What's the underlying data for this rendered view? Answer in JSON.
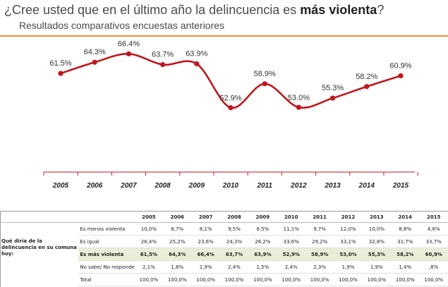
{
  "title": {
    "prefix": "¿Cree usted que en el último año la delincuencia es ",
    "bold": "más violenta",
    "suffix": "?"
  },
  "subtitle": "Resultados comparativos encuestas anteriores",
  "colors": {
    "line": "#c0161c",
    "accent": "#f08a2c",
    "highlight": "#e8eed7"
  },
  "chart_data": {
    "type": "line",
    "categories": [
      "2005",
      "2006",
      "2007",
      "2008",
      "2009",
      "2010",
      "2011",
      "2012",
      "2013",
      "2014",
      "2015"
    ],
    "values": [
      61.5,
      64.3,
      66.4,
      63.7,
      63.9,
      52.9,
      58.9,
      53.0,
      55.3,
      58.2,
      60.9
    ],
    "data_labels": [
      "61.5%",
      "64.3%",
      "66.4%",
      "63.7%",
      "63.9%",
      "52.9%",
      "58.9%",
      "53.0%",
      "55.3%",
      "58.2%",
      "60.9%"
    ],
    "ylim": [
      35,
      70
    ],
    "grid": false
  },
  "table": {
    "question": "Qué diría de la delincuencia en su comuna hoy:",
    "years": [
      "2005",
      "2006",
      "2007",
      "2008",
      "2009",
      "2010",
      "2011",
      "2012",
      "2013",
      "2014",
      "2015"
    ],
    "rows": [
      {
        "label": "Es menos violenta",
        "values": [
          "10,0%",
          "8,7%",
          "8,1%",
          "9,5%",
          "8,5%",
          "11,1%",
          "9,7%",
          "12,0%",
          "10,0%",
          "8,8%",
          "4,6%"
        ]
      },
      {
        "label": "Es igual",
        "values": [
          "26,4%",
          "25,2%",
          "23,6%",
          "24,3%",
          "26,2%",
          "33,6%",
          "29,2%",
          "33,1%",
          "32,8%",
          "31,7%",
          "33,7%"
        ]
      },
      {
        "label": "Es más violenta",
        "values": [
          "61,5%",
          "64,3%",
          "66,4%",
          "63,7%",
          "63,9%",
          "52,9%",
          "58,9%",
          "53,0%",
          "55,3%",
          "58,2%",
          "60,9%"
        ]
      },
      {
        "label": "No sabe/ No responde",
        "values": [
          "2,1%",
          "1,8%",
          "1,9%",
          "2,4%",
          "1,5%",
          "2,4%",
          "2,3%",
          "1,9%",
          "1,9%",
          "1,4%",
          ",8%"
        ]
      },
      {
        "label": "Total",
        "values": [
          "100,0%",
          "100,0%",
          "100,0%",
          "100,0%",
          "100,0%",
          "100,0%",
          "100,0%",
          "100,0%",
          "100,0%",
          "100,0%",
          "100,0%"
        ]
      }
    ]
  }
}
